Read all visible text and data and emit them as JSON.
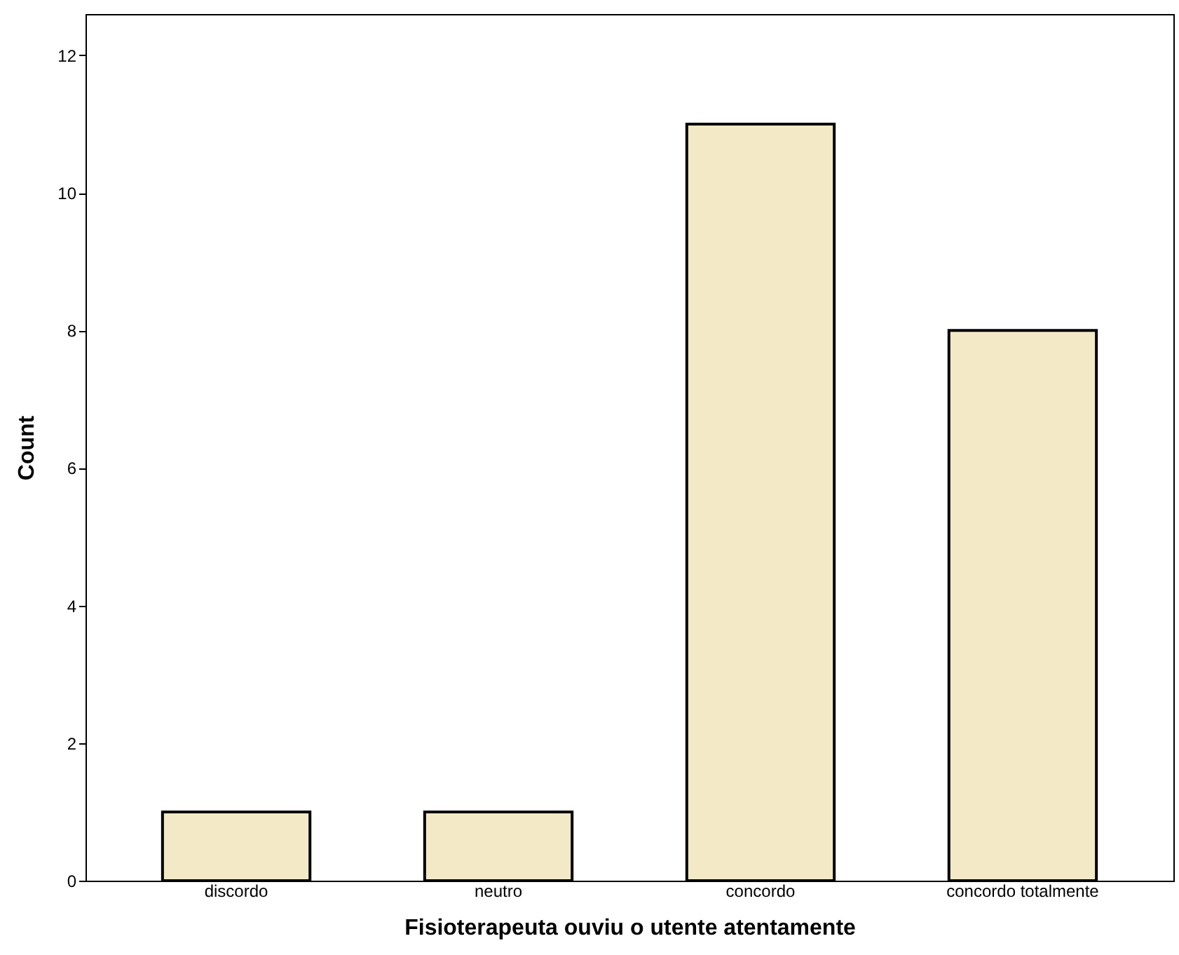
{
  "chart_data": {
    "type": "bar",
    "xlabel": "Fisioterapeuta ouviu o utente atentamente",
    "ylabel": "Count",
    "categories": [
      "discordo",
      "neutro",
      "concordo",
      "concordo totalmente"
    ],
    "values": [
      1,
      1,
      11,
      8
    ],
    "color": "#f3e9c6",
    "ylim": [
      0,
      12.6
    ],
    "yticks": [
      0,
      2,
      4,
      6,
      8,
      10,
      12
    ],
    "grid": false
  }
}
